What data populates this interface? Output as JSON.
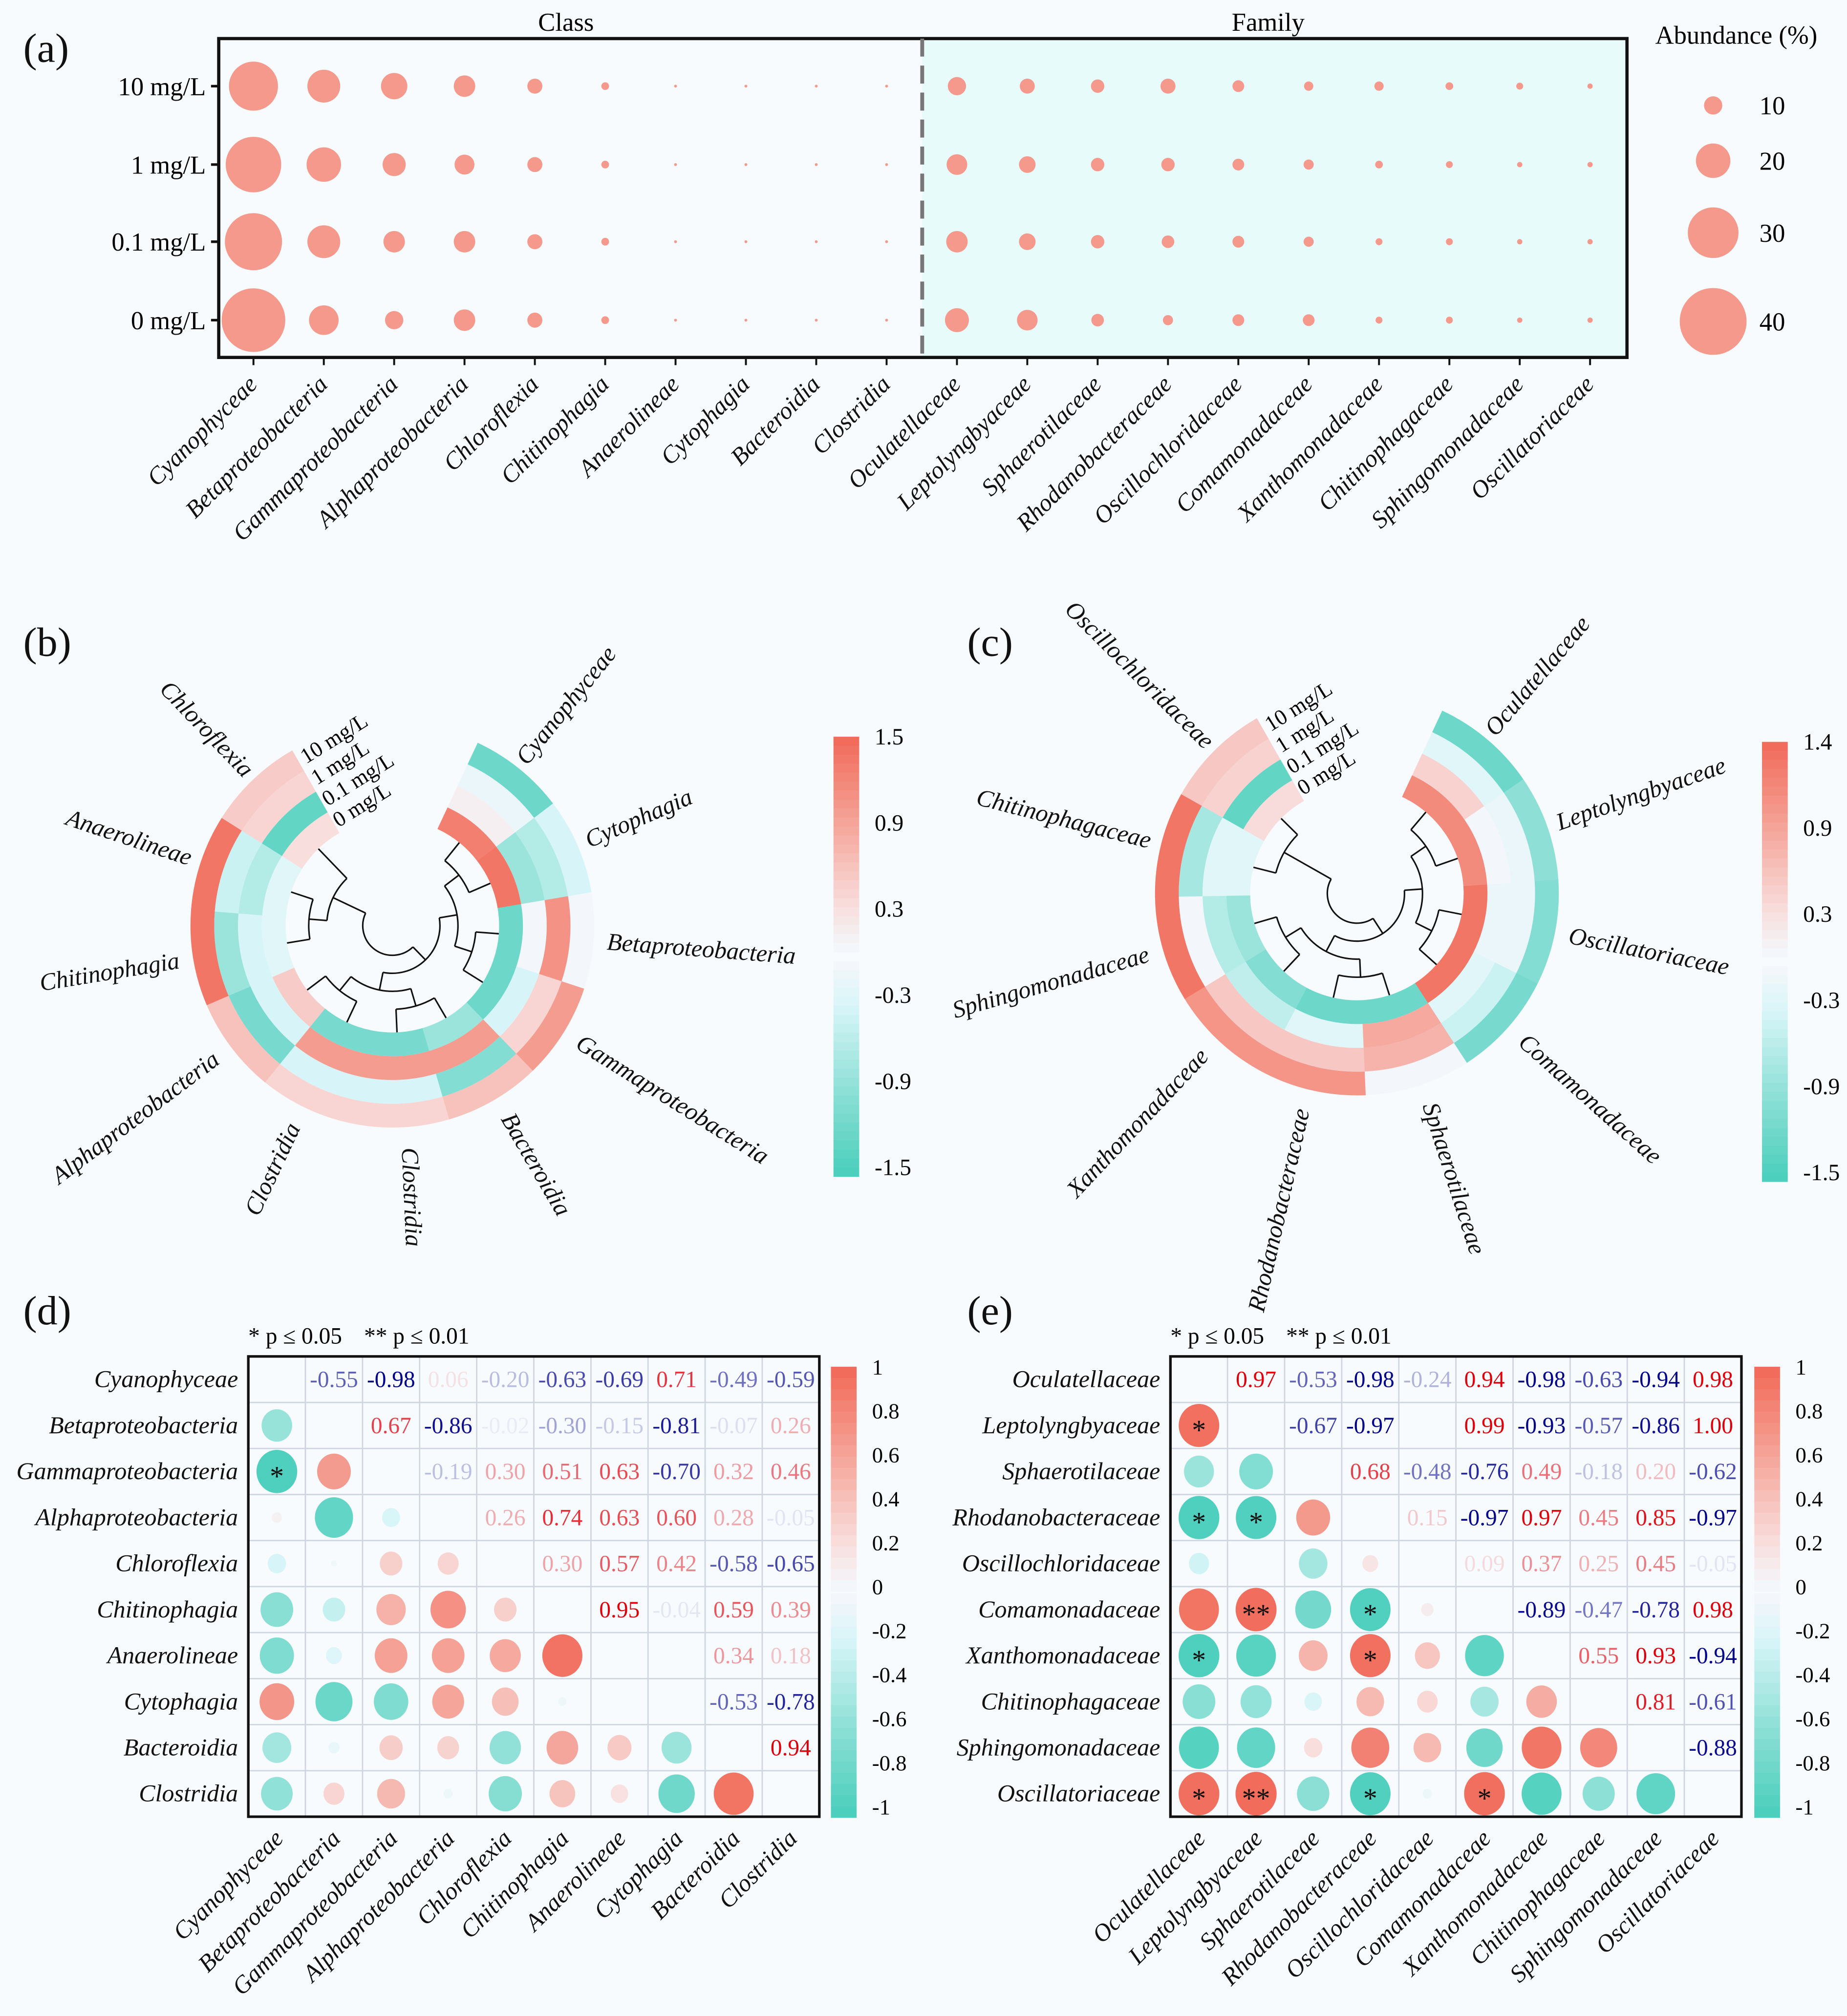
{
  "panels": {
    "a": "(a)",
    "b": "(b)",
    "c": "(c)",
    "d": "(d)",
    "e": "(e)"
  },
  "colors": {
    "bubble": "#f4998c",
    "family_background": "#e8fbfb",
    "negative": "#4ecdb9",
    "positive": "#f26a5a",
    "neg_text": "#00008b",
    "pos_text": "#e0000b"
  },
  "chart_data": [
    {
      "type": "scatter",
      "subtype": "bubble",
      "rows": [
        "10 mg/L",
        "1 mg/L",
        "0.1 mg/L",
        "0 mg/L"
      ],
      "facets": [
        {
          "label": "Class",
          "categories": [
            "Cyanophyceae",
            "Betaproteobacteria",
            "Gammaproteobacteria",
            "Alphaproteobacteria",
            "Chloroflexia",
            "Chitinophagia",
            "Anaerolineae",
            "Cytophagia",
            "Bacteroidia",
            "Clostridia"
          ],
          "values": [
            [
              29,
              19,
              15,
              12,
              8,
              3.5,
              0.5,
              0.5,
              0.5,
              0.5
            ],
            [
              33,
              20,
              13,
              11,
              8,
              3.5,
              0.5,
              0.5,
              0.5,
              0.5
            ],
            [
              34,
              19,
              12,
              12,
              8,
              3.5,
              0.5,
              0.5,
              0.5,
              0.5
            ],
            [
              38,
              17,
              10,
              12,
              8,
              3.5,
              0.5,
              0.5,
              0.5,
              0.5
            ]
          ]
        },
        {
          "label": "Family",
          "categories": [
            "Oculatellaceae",
            "Leptolyngbyaceae",
            "Sphaerotilaceae",
            "Rhodanobacteraceae",
            "Oscillochloridaceae",
            "Comamonadaceae",
            "Xanthomonadaceae",
            "Chitinophagaceae",
            "Sphingomonadaceae",
            "Oscillatoriaceae"
          ],
          "values": [
            [
              10,
              8,
              7,
              8,
              6,
              4.5,
              4.5,
              3.5,
              3,
              2
            ],
            [
              11.5,
              9,
              7,
              7,
              6,
              5,
              3.5,
              3,
              2,
              2
            ],
            [
              12,
              9,
              7,
              6.5,
              6,
              5,
              3,
              3,
              2,
              2
            ],
            [
              13.5,
              11.5,
              6.5,
              5,
              6,
              6,
              3,
              3,
              2,
              2
            ]
          ]
        }
      ],
      "size_legend": {
        "title": "Abundance (%)",
        "values": [
          10,
          20,
          30,
          40
        ]
      }
    },
    {
      "type": "heatmap",
      "layout": "circular",
      "rings": [
        "10 mg/L",
        "1 mg/L",
        "0.1 mg/L",
        "0 mg/L"
      ],
      "categories": [
        "Cyanophyceae",
        "Cytophagia",
        "Betaproteobacteria",
        "Gammaproteobacteria",
        "Bacteroidia",
        "Clostridia",
        "Clostridia",
        "Alphaproteobacteria",
        "Chitinophagia",
        "Anaerolineae",
        "Chloroflexia"
      ],
      "values": [
        [
          -1.2,
          -0.1,
          0.1,
          1.3
        ],
        [
          -0.3,
          -0.6,
          -0.8,
          1.4
        ],
        [
          0.0,
          1.1,
          0.0,
          -1.2
        ],
        [
          1.0,
          0.4,
          -0.3,
          -1.2
        ],
        [
          0.6,
          -1.0,
          1.0,
          -0.8
        ],
        [
          0.4,
          -0.3,
          1.0,
          -1.1
        ],
        [
          0.4,
          -0.3,
          1.0,
          -1.1
        ],
        [
          0.6,
          -1.1,
          -0.3,
          0.5
        ],
        [
          1.4,
          -0.8,
          -0.3,
          -0.2
        ],
        [
          1.4,
          -0.4,
          -0.6,
          -0.2
        ],
        [
          0.5,
          0.4,
          -1.3,
          0.3
        ]
      ],
      "colorbar": {
        "range": [
          -1.5,
          1.5
        ],
        "ticks": [
          "1.5",
          "0.9",
          "0.3",
          "-0.3",
          "-0.9",
          "-1.5"
        ]
      }
    },
    {
      "type": "heatmap",
      "layout": "circular",
      "rings": [
        "10 mg/L",
        "1 mg/L",
        "0.1 mg/L",
        "0 mg/L"
      ],
      "categories": [
        "Oculatellaceae",
        "Leptolyngbyaceae",
        "Oscillatoriaceae",
        "Comamonadaceae",
        "Sphaerotilaceae",
        "Rhodanobacteraceae",
        "Xanthomonadaceae",
        "Sphingomonadaceae",
        "Chitinophagaceae",
        "Oscillochloridaceae"
      ],
      "values": [
        [
          -1.2,
          -0.2,
          0.4,
          1.1
        ],
        [
          -0.9,
          -0.1,
          0.0,
          1.1
        ],
        [
          -1.0,
          -0.1,
          -0.1,
          1.3
        ],
        [
          -1.1,
          -0.4,
          -0.2,
          1.3
        ],
        [
          0.0,
          0.7,
          0.8,
          -1.2
        ],
        [
          1.0,
          0.5,
          -0.2,
          -1.2
        ],
        [
          1.0,
          0.5,
          -0.5,
          -1.0
        ],
        [
          1.3,
          0.0,
          -0.6,
          -0.8
        ],
        [
          1.3,
          -0.7,
          -0.2,
          -0.2
        ],
        [
          0.5,
          0.4,
          -1.3,
          0.3
        ]
      ],
      "colorbar": {
        "range": [
          -1.5,
          1.4
        ],
        "ticks": [
          "1.4",
          "0.9",
          "0.3",
          "-0.3",
          "-0.9",
          "-1.5"
        ]
      }
    },
    {
      "type": "heatmap",
      "subtype": "correlation",
      "significance_legend": [
        "* p ≤ 0.05",
        "** p ≤ 0.01"
      ],
      "categories": [
        "Cyanophyceae",
        "Betaproteobacteria",
        "Gammaproteobacteria",
        "Alphaproteobacteria",
        "Chloroflexia",
        "Chitinophagia",
        "Anaerolineae",
        "Cytophagia",
        "Bacteroidia",
        "Clostridia"
      ],
      "upper": [
        [
          null,
          -0.55,
          -0.98,
          0.06,
          -0.2,
          -0.63,
          -0.69,
          0.71,
          -0.49,
          -0.59
        ],
        [
          null,
          null,
          0.67,
          -0.86,
          -0.02,
          -0.3,
          -0.15,
          -0.81,
          -0.07,
          0.26
        ],
        [
          null,
          null,
          null,
          -0.19,
          0.3,
          0.51,
          0.63,
          -0.7,
          0.32,
          0.46
        ],
        [
          null,
          null,
          null,
          null,
          0.26,
          0.74,
          0.63,
          0.6,
          0.28,
          -0.05
        ],
        [
          null,
          null,
          null,
          null,
          null,
          0.3,
          0.57,
          0.42,
          -0.58,
          -0.65
        ],
        [
          null,
          null,
          null,
          null,
          null,
          null,
          0.95,
          -0.04,
          0.59,
          0.39
        ],
        [
          null,
          null,
          null,
          null,
          null,
          null,
          null,
          null,
          0.34,
          0.18
        ],
        [
          null,
          null,
          null,
          null,
          null,
          null,
          null,
          null,
          -0.53,
          -0.78
        ],
        [
          null,
          null,
          null,
          null,
          null,
          null,
          null,
          null,
          null,
          0.94
        ],
        [
          null,
          null,
          null,
          null,
          null,
          null,
          null,
          null,
          null,
          null
        ]
      ],
      "significance": [
        [
          2,
          0,
          "*"
        ]
      ],
      "colorbar": {
        "range": [
          -1,
          1
        ],
        "ticks": [
          "1",
          "0.8",
          "0.6",
          "0.4",
          "0.2",
          "0",
          "-0.2",
          "-0.4",
          "-0.6",
          "-0.8",
          "-1"
        ]
      }
    },
    {
      "type": "heatmap",
      "subtype": "correlation",
      "significance_legend": [
        "* p ≤ 0.05",
        "** p ≤ 0.01"
      ],
      "categories": [
        "Oculatellaceae",
        "Leptolyngbyaceae",
        "Sphaerotilaceae",
        "Rhodanobacteraceae",
        "Oscillochloridaceae",
        "Comamonadaceae",
        "Xanthomonadaceae",
        "Chitinophagaceae",
        "Sphingomonadaceae",
        "Oscillatoriaceae"
      ],
      "upper": [
        [
          null,
          0.97,
          -0.53,
          -0.98,
          -0.24,
          0.94,
          -0.98,
          -0.63,
          -0.94,
          0.98
        ],
        [
          null,
          null,
          -0.67,
          -0.97,
          null,
          0.99,
          -0.93,
          -0.57,
          -0.86,
          1.0
        ],
        [
          null,
          null,
          null,
          0.68,
          -0.48,
          -0.76,
          0.49,
          -0.18,
          0.2,
          -0.62
        ],
        [
          null,
          null,
          null,
          null,
          0.15,
          -0.97,
          0.97,
          0.45,
          0.85,
          -0.97
        ],
        [
          null,
          null,
          null,
          null,
          null,
          0.09,
          0.37,
          0.25,
          0.45,
          -0.05
        ],
        [
          null,
          null,
          null,
          null,
          null,
          null,
          -0.89,
          -0.47,
          -0.78,
          0.98
        ],
        [
          null,
          null,
          null,
          null,
          null,
          null,
          null,
          0.55,
          0.93,
          -0.94
        ],
        [
          null,
          null,
          null,
          null,
          null,
          null,
          null,
          null,
          0.81,
          -0.61
        ],
        [
          null,
          null,
          null,
          null,
          null,
          null,
          null,
          null,
          null,
          -0.88
        ],
        [
          null,
          null,
          null,
          null,
          null,
          null,
          null,
          null,
          null,
          null
        ]
      ],
      "significance": [
        [
          1,
          0,
          "*"
        ],
        [
          3,
          0,
          "*"
        ],
        [
          3,
          1,
          "*"
        ],
        [
          5,
          1,
          "**"
        ],
        [
          5,
          3,
          "*"
        ],
        [
          6,
          0,
          "*"
        ],
        [
          6,
          3,
          "*"
        ],
        [
          9,
          0,
          "*"
        ],
        [
          9,
          1,
          "**"
        ],
        [
          9,
          3,
          "*"
        ],
        [
          9,
          5,
          "*"
        ]
      ],
      "colorbar": {
        "range": [
          -1,
          1
        ],
        "ticks": [
          "1",
          "0.8",
          "0.6",
          "0.4",
          "0.2",
          "0",
          "-0.2",
          "-0.4",
          "-0.6",
          "-0.8",
          "-1"
        ]
      }
    }
  ]
}
